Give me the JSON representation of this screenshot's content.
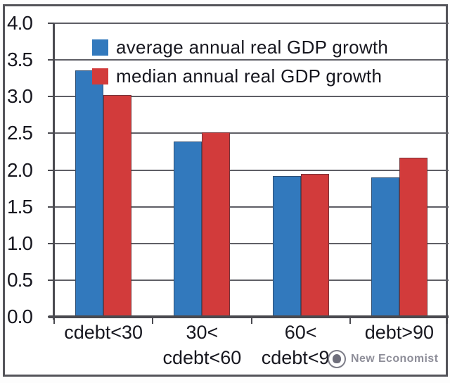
{
  "chart_data": {
    "type": "bar",
    "title": "",
    "xlabel": "",
    "ylabel": "",
    "categories": [
      "cdebt<30",
      "30< cdebt<60",
      "60< cdebt<90",
      "debt>90"
    ],
    "category_lines": [
      [
        "cdebt<30"
      ],
      [
        "30<",
        "cdebt<60"
      ],
      [
        "60<",
        "cdebt<90"
      ],
      [
        "debt>90"
      ]
    ],
    "series": [
      {
        "name": "average annual real GDP growth",
        "color": "#3279BD",
        "values": [
          3.36,
          2.39,
          1.92,
          1.9
        ]
      },
      {
        "name": "median annual real GDP growth",
        "color": "#D23B3B",
        "values": [
          3.02,
          2.51,
          1.95,
          2.17
        ]
      }
    ],
    "ylim": [
      0,
      4
    ],
    "y_tick_step": 0.5,
    "y_tick_labels": [
      "0.0",
      "0.5",
      "1.0",
      "1.5",
      "2.0",
      "2.5",
      "3.0",
      "3.5",
      "4.0"
    ],
    "grid": true,
    "legend_position": "top-left-inside"
  },
  "watermark": {
    "text": "New Economist"
  },
  "colors": {
    "grid": "#5f5f66",
    "axis": "#4a4a50",
    "text": "#17171f",
    "frame": "#54545a",
    "bar_blue": "#3279BD",
    "bar_red": "#D23B3B",
    "watermark": "#8e8e99"
  }
}
